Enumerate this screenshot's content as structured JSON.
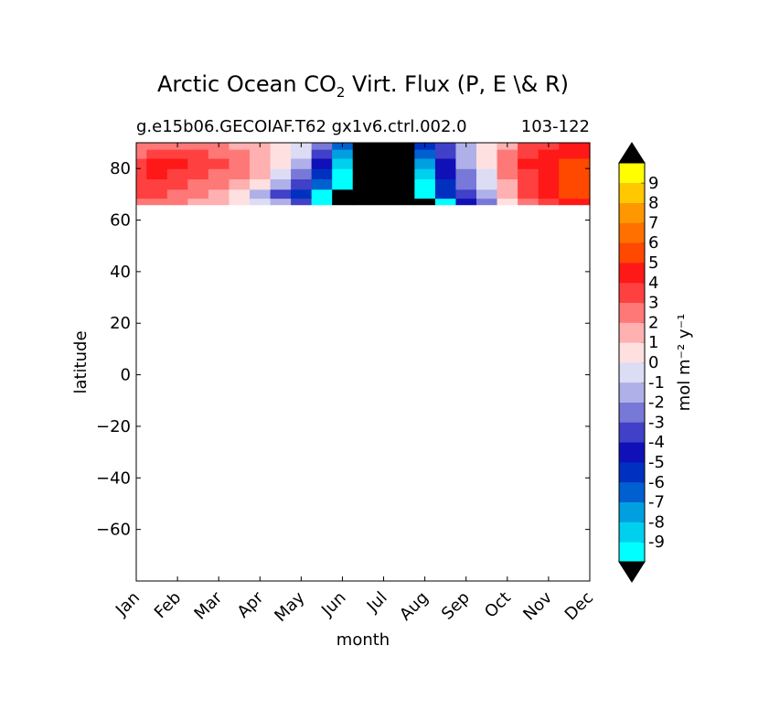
{
  "chart_data": {
    "type": "heatmap",
    "title": "Arctic Ocean CO",
    "title_subscript": "2",
    "title_suffix": " Virt. Flux (P, E \\& R)",
    "subtitle_left": "g.e15b06.GECOIAF.T62 gx1v6.ctrl.002.0",
    "subtitle_right": "103-122",
    "xlabel": "month",
    "ylabel": "latitude",
    "x_categories": [
      "Jan",
      "Feb",
      "Mar",
      "Apr",
      "May",
      "Jun",
      "Jul",
      "Aug",
      "Sep",
      "Oct",
      "Nov",
      "Dec"
    ],
    "ylim": [
      -80,
      90
    ],
    "y_ticks": [
      {
        "value": 80,
        "label": "80"
      },
      {
        "value": 60,
        "label": "60"
      },
      {
        "value": 40,
        "label": "40"
      },
      {
        "value": 20,
        "label": "20"
      },
      {
        "value": 0,
        "label": "0"
      },
      {
        "value": -20,
        "label": "−20"
      },
      {
        "value": -40,
        "label": "−40"
      },
      {
        "value": -60,
        "label": "−60"
      }
    ],
    "data_lat_range": [
      66,
      90
    ],
    "undefined_color": "#000000",
    "colorbar": {
      "label": "mol m⁻² y⁻¹",
      "levels": [
        {
          "label": "-9",
          "color": "#00ffff"
        },
        {
          "label": "-8",
          "color": "#00d0ee"
        },
        {
          "label": "-7",
          "color": "#00a0e0"
        },
        {
          "label": "-6",
          "color": "#0060d0"
        },
        {
          "label": "-5",
          "color": "#0030c0"
        },
        {
          "label": "-4",
          "color": "#1010b8"
        },
        {
          "label": "-3",
          "color": "#4040c8"
        },
        {
          "label": "-2",
          "color": "#7878d8"
        },
        {
          "label": "-1",
          "color": "#b0b0e8"
        },
        {
          "label": "0",
          "color": "#dcdcf4"
        },
        {
          "label": "1",
          "color": "#ffe0e0"
        },
        {
          "label": "2",
          "color": "#ffb0b0"
        },
        {
          "label": "3",
          "color": "#ff7878"
        },
        {
          "label": "4",
          "color": "#ff4040"
        },
        {
          "label": "5",
          "color": "#ff1818"
        },
        {
          "label": "6",
          "color": "#ff4800"
        },
        {
          "label": "7",
          "color": "#ff7000"
        },
        {
          "label": "8",
          "color": "#ff9800"
        },
        {
          "label": "9",
          "color": "#ffc800"
        }
      ],
      "under_color": "#000000",
      "over_color": "#000000",
      "top_color": "#ffff00"
    },
    "field": {
      "lat_rows": [
        67,
        70,
        74,
        78,
        82,
        86,
        89
      ],
      "month_cols": [
        0,
        0.5,
        1,
        1.5,
        2,
        2.5,
        3,
        3.5,
        4,
        4.5,
        5,
        5.5,
        6,
        6.5,
        7,
        7.5,
        8,
        8.5,
        9,
        9.5,
        10,
        10.5,
        11
      ],
      "values": [
        [
          3,
          3,
          3,
          2,
          2,
          1,
          0,
          -1,
          -3,
          -9,
          null,
          null,
          null,
          null,
          null,
          -9,
          -4,
          -2,
          1,
          3,
          4,
          5,
          5
        ],
        [
          4,
          4,
          3,
          3,
          2,
          1,
          -1,
          -3,
          -5,
          -9,
          null,
          null,
          null,
          null,
          -9,
          -5,
          -3,
          -1,
          2,
          4,
          5,
          6,
          6
        ],
        [
          4,
          4,
          4,
          3,
          3,
          2,
          1,
          -1,
          -3,
          -6,
          -9,
          null,
          null,
          null,
          -9,
          -5,
          -2,
          0,
          2,
          4,
          5,
          6,
          6
        ],
        [
          4,
          5,
          4,
          4,
          3,
          3,
          2,
          0,
          -2,
          -5,
          -9,
          null,
          null,
          null,
          -8,
          -4,
          -2,
          0,
          3,
          4,
          5,
          6,
          6
        ],
        [
          4,
          5,
          5,
          4,
          4,
          3,
          2,
          1,
          -1,
          -4,
          -8,
          null,
          null,
          null,
          -7,
          -4,
          -1,
          1,
          3,
          5,
          5,
          6,
          6
        ],
        [
          3,
          4,
          4,
          4,
          3,
          3,
          2,
          1,
          0,
          -3,
          -7,
          null,
          null,
          null,
          -6,
          -3,
          -1,
          1,
          3,
          4,
          5,
          5,
          5
        ],
        [
          3,
          3,
          3,
          3,
          3,
          2,
          2,
          1,
          0,
          -2,
          -6,
          null,
          null,
          null,
          -5,
          -3,
          -1,
          1,
          2,
          4,
          4,
          5,
          5
        ]
      ]
    }
  }
}
